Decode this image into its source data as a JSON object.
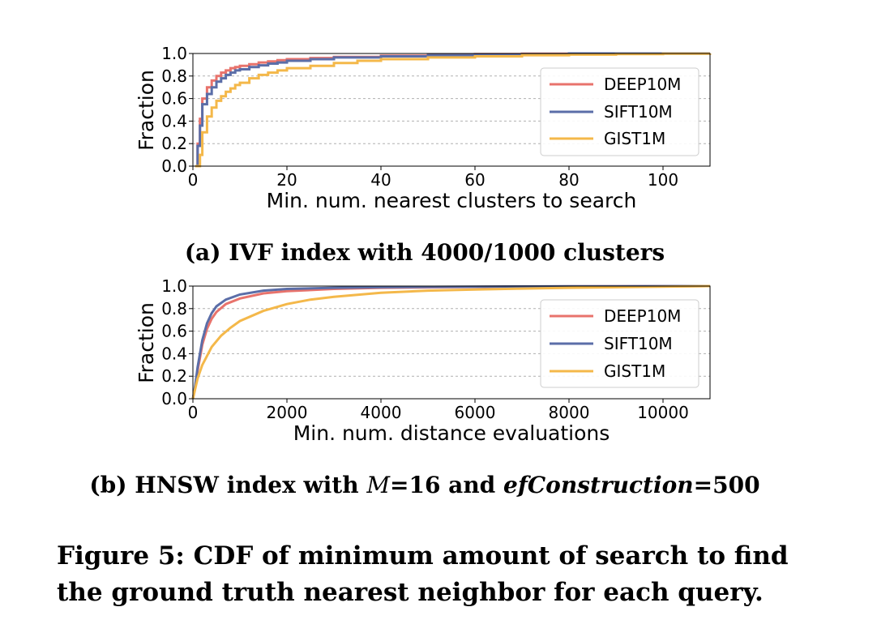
{
  "colors": {
    "DEEP10M": "#e8736c",
    "SIFT10M": "#5b6ea8",
    "GIST1M": "#f4b84a"
  },
  "subcaption_a": "(a) IVF index with 4000/1000 clusters",
  "subcaption_b": {
    "prefix": "(b) HNSW index with ",
    "m_var": "M",
    "m_val": "=16 and ",
    "ef_var": "efConstruction",
    "ef_val": "=500"
  },
  "figure_caption": {
    "line1": "Figure 5: CDF of minimum amount of search to find",
    "line2": "the ground truth nearest neighbor for each query."
  },
  "chart_data": [
    {
      "type": "line",
      "step": true,
      "xlabel": "Min. num. nearest clusters to search",
      "ylabel": "Fraction",
      "xlim": [
        0,
        110
      ],
      "ylim": [
        0,
        1
      ],
      "xticks": [
        0,
        20,
        40,
        60,
        80,
        100
      ],
      "yticks": [
        0,
        0.2,
        0.4,
        0.6,
        0.8,
        1.0
      ],
      "ytick_labels": [
        "0.0",
        "0.2",
        "0.4",
        "0.6",
        "0.8",
        "1.0"
      ],
      "grid": "horizontal",
      "legend": "right",
      "series": [
        {
          "name": "DEEP10M",
          "color": "#e8736c",
          "x": [
            0.5,
            1,
            1.5,
            2,
            3,
            4,
            5,
            6,
            7,
            8,
            9,
            10,
            12,
            14,
            16,
            18,
            20,
            25,
            30,
            40,
            50,
            60,
            70,
            80,
            110
          ],
          "y": [
            0,
            0.2,
            0.42,
            0.6,
            0.7,
            0.76,
            0.8,
            0.83,
            0.85,
            0.87,
            0.88,
            0.89,
            0.905,
            0.92,
            0.93,
            0.94,
            0.95,
            0.96,
            0.97,
            0.98,
            0.99,
            0.995,
            0.998,
            1.0,
            1.0
          ]
        },
        {
          "name": "SIFT10M",
          "color": "#5b6ea8",
          "x": [
            0.5,
            1,
            1.5,
            2,
            3,
            4,
            5,
            6,
            7,
            8,
            9,
            10,
            12,
            14,
            16,
            18,
            20,
            25,
            30,
            40,
            50,
            60,
            70,
            80,
            110
          ],
          "y": [
            0,
            0.18,
            0.36,
            0.55,
            0.64,
            0.7,
            0.75,
            0.78,
            0.81,
            0.83,
            0.85,
            0.86,
            0.88,
            0.895,
            0.91,
            0.92,
            0.935,
            0.95,
            0.965,
            0.975,
            0.985,
            0.99,
            0.995,
            1.0,
            1.0
          ]
        },
        {
          "name": "GIST1M",
          "color": "#f4b84a",
          "x": [
            0.5,
            1,
            1.5,
            2,
            3,
            4,
            5,
            6,
            7,
            8,
            9,
            10,
            12,
            14,
            16,
            18,
            20,
            25,
            30,
            35,
            40,
            50,
            60,
            70,
            80,
            90,
            100,
            110
          ],
          "y": [
            0,
            0,
            0.1,
            0.3,
            0.44,
            0.52,
            0.58,
            0.62,
            0.66,
            0.69,
            0.72,
            0.74,
            0.78,
            0.81,
            0.83,
            0.85,
            0.87,
            0.89,
            0.915,
            0.935,
            0.95,
            0.965,
            0.975,
            0.985,
            0.99,
            0.995,
            0.998,
            1.0
          ]
        }
      ]
    },
    {
      "type": "line",
      "step": false,
      "xlabel": "Min. num. distance evaluations",
      "ylabel": "Fraction",
      "xlim": [
        0,
        11000
      ],
      "ylim": [
        0,
        1
      ],
      "xticks": [
        0,
        2000,
        4000,
        6000,
        8000,
        10000
      ],
      "yticks": [
        0,
        0.2,
        0.4,
        0.6,
        0.8,
        1.0
      ],
      "ytick_labels": [
        "0.0",
        "0.2",
        "0.4",
        "0.6",
        "0.8",
        "1.0"
      ],
      "grid": "horizontal",
      "legend": "right",
      "series": [
        {
          "name": "DEEP10M",
          "color": "#e8736c",
          "x": [
            0,
            50,
            100,
            200,
            300,
            400,
            500,
            700,
            1000,
            1500,
            2000,
            3000,
            4000,
            6000,
            8000,
            11000
          ],
          "y": [
            0,
            0.1,
            0.25,
            0.48,
            0.62,
            0.71,
            0.77,
            0.84,
            0.89,
            0.935,
            0.955,
            0.975,
            0.985,
            0.993,
            0.997,
            1.0
          ]
        },
        {
          "name": "SIFT10M",
          "color": "#5b6ea8",
          "x": [
            0,
            50,
            100,
            200,
            300,
            400,
            500,
            700,
            1000,
            1500,
            2000,
            3000,
            4000,
            6000,
            8000,
            11000
          ],
          "y": [
            0,
            0.12,
            0.28,
            0.52,
            0.67,
            0.76,
            0.82,
            0.88,
            0.925,
            0.96,
            0.975,
            0.985,
            0.99,
            0.995,
            0.998,
            1.0
          ]
        },
        {
          "name": "GIST1M",
          "color": "#f4b84a",
          "x": [
            0,
            100,
            200,
            400,
            600,
            800,
            1000,
            1500,
            2000,
            2500,
            3000,
            4000,
            5000,
            6000,
            7000,
            8000,
            10000,
            11000
          ],
          "y": [
            0,
            0.18,
            0.3,
            0.46,
            0.56,
            0.63,
            0.69,
            0.78,
            0.84,
            0.88,
            0.905,
            0.94,
            0.96,
            0.97,
            0.978,
            0.985,
            0.995,
            1.0
          ]
        }
      ]
    }
  ]
}
